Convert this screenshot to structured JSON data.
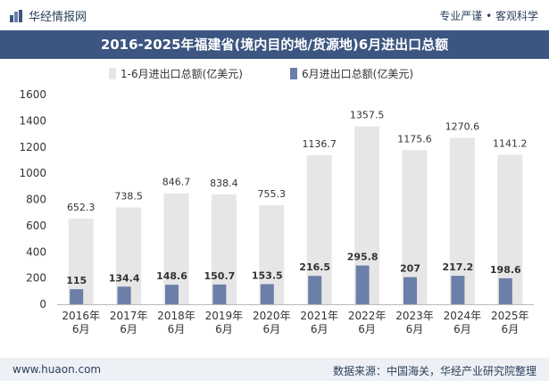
{
  "header": {
    "brand": "华经情报网",
    "tagline": "专业严谨 • 客观科学"
  },
  "title": "2016-2025年福建省(境内目的地/货源地)6月进出口总额",
  "footer": {
    "website": "www.huaon.com",
    "source": "数据来源：中国海关，华经产业研究院整理"
  },
  "colors": {
    "title_bg": "#3c5681",
    "series1": "#e6e6e6",
    "series2": "#6b7fa8"
  },
  "chart_data": {
    "type": "bar",
    "categories": [
      [
        "2016年",
        "6月"
      ],
      [
        "2017年",
        "6月"
      ],
      [
        "2018年",
        "6月"
      ],
      [
        "2019年",
        "6月"
      ],
      [
        "2020年",
        "6月"
      ],
      [
        "2021年",
        "6月"
      ],
      [
        "2022年",
        "6月"
      ],
      [
        "2023年",
        "6月"
      ],
      [
        "2024年",
        "6月"
      ],
      [
        "2025年",
        "6月"
      ]
    ],
    "series": [
      {
        "name": "1-6月进出口总额(亿美元)",
        "values": [
          652.3,
          738.5,
          846.7,
          838.4,
          755.3,
          1136.7,
          1357.5,
          1175.6,
          1270.6,
          1141.2
        ]
      },
      {
        "name": "6月进出口总额(亿美元)",
        "values": [
          115,
          134.4,
          148.6,
          150.7,
          153.5,
          216.5,
          295.8,
          207,
          217.2,
          198.6
        ]
      }
    ],
    "ylim": [
      0,
      1600
    ],
    "yticks": [
      0,
      200,
      400,
      600,
      800,
      1000,
      1200,
      1400,
      1600
    ],
    "legend_position": "top",
    "grid": false
  }
}
